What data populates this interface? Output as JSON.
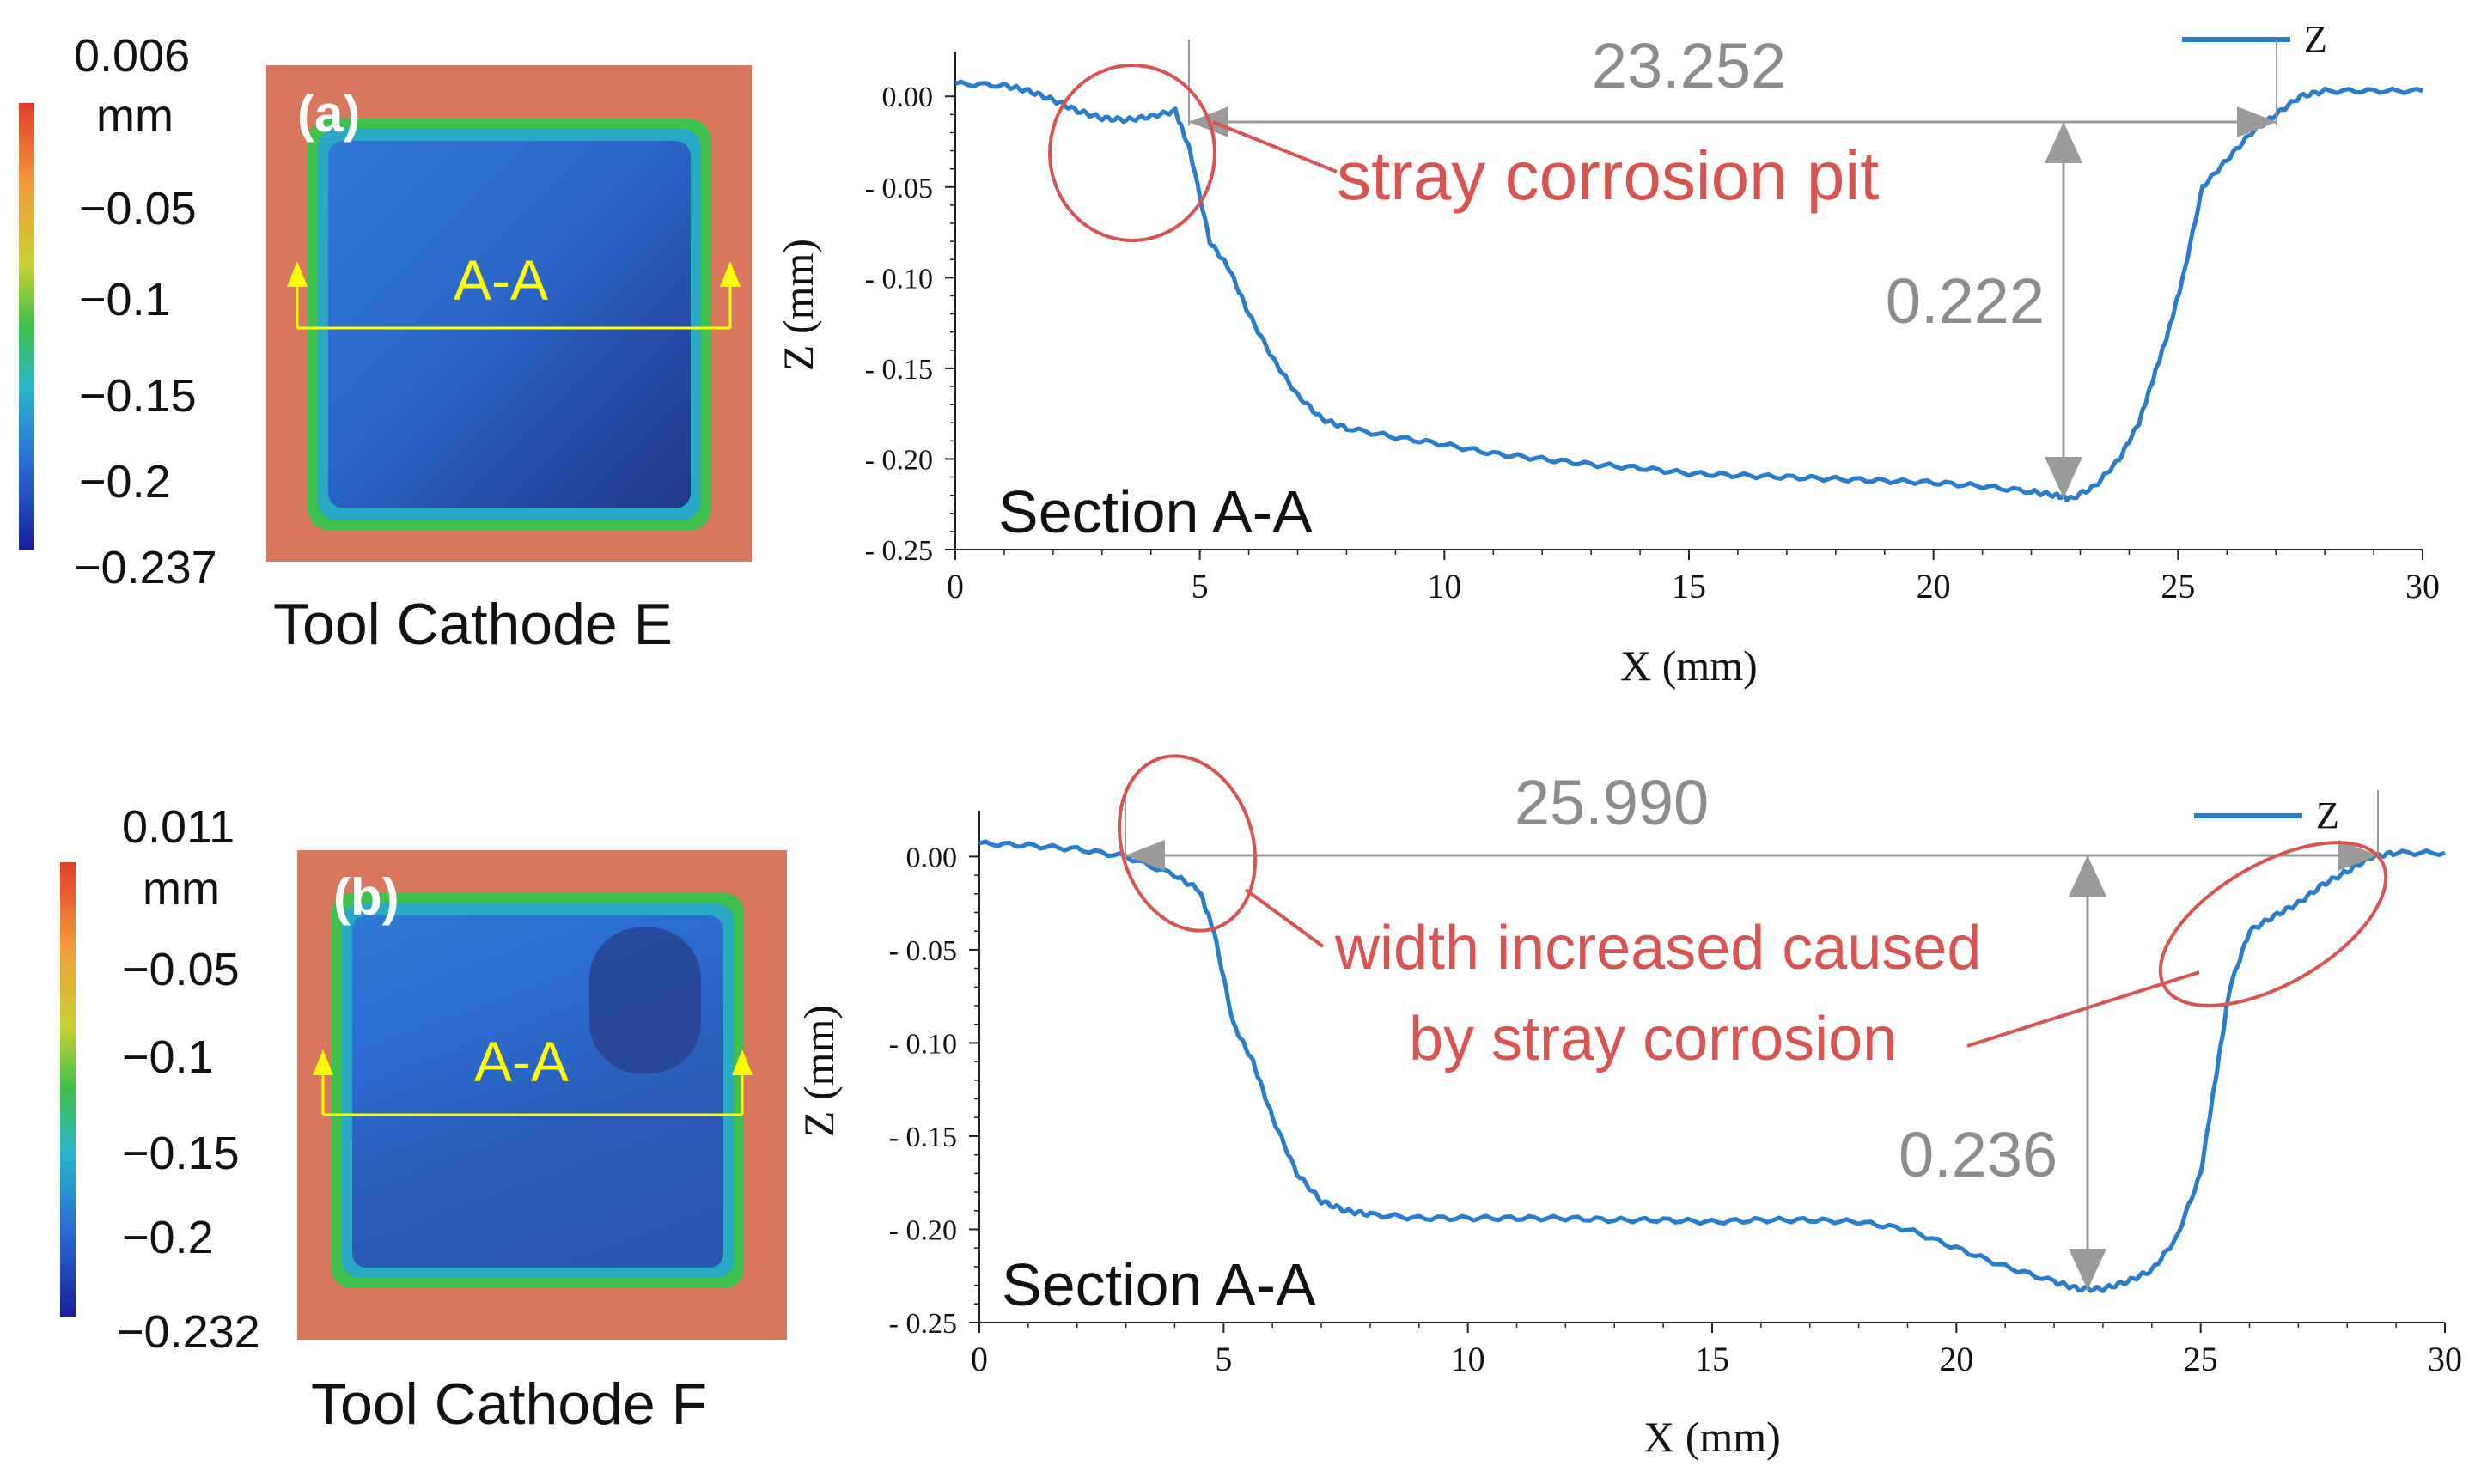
{
  "panels": [
    {
      "id": "a",
      "panel_label": "(a)",
      "caption": "Tool Cathode E",
      "section_marker": "A-A",
      "colorbar": {
        "max_label": "0.006",
        "unit": "mm",
        "tick_labels": [
          "−0.05",
          "−0.1",
          "−0.15",
          "−0.2"
        ],
        "min_label": "−0.237"
      },
      "annotations": {
        "width_value": "23.252",
        "depth_value": "0.222",
        "note": "stray corrosion pit",
        "section_label": "Section A-A"
      }
    },
    {
      "id": "b",
      "panel_label": "(b)",
      "caption": "Tool Cathode F",
      "section_marker": "A-A",
      "colorbar": {
        "max_label": "0.011",
        "unit": "mm",
        "tick_labels": [
          "−0.05",
          "−0.1",
          "−0.15",
          "−0.2"
        ],
        "min_label": "−0.232"
      },
      "annotations": {
        "width_value": "25.990",
        "depth_value": "0.236",
        "note_line1": "width increased caused",
        "note_line2": "by stray corrosion",
        "section_label": "Section A-A"
      }
    }
  ],
  "colors": {
    "profile": "#2a7ccc",
    "annotation": "#d9534f",
    "dimension": "#9a9a9a",
    "marker": "#ffff00"
  },
  "chart_data": [
    {
      "type": "line",
      "xlabel": "X (mm)",
      "ylabel": "Z (mm)",
      "xlim": [
        0,
        30
      ],
      "ylim": [
        -0.25,
        0.02
      ],
      "x_ticks": [
        0,
        5,
        10,
        15,
        20,
        25,
        30
      ],
      "x_tick_labels": [
        "0",
        "5",
        "10",
        "15",
        "20",
        "25",
        "30"
      ],
      "y_ticks": [
        0.0,
        -0.05,
        -0.1,
        -0.15,
        -0.2,
        -0.25
      ],
      "y_tick_labels": [
        "0.00",
        "- 0.05",
        "- 0.10",
        "- 0.15",
        "- 0.20",
        "- 0.25"
      ],
      "legend": "Z",
      "series": [
        {
          "name": "Z",
          "x": [
            0,
            1,
            1.5,
            2,
            2.5,
            3,
            3.5,
            4,
            4.5,
            4.8,
            5.2,
            5.6,
            6,
            6.5,
            7,
            7.5,
            8,
            9,
            10,
            11,
            12,
            13,
            14,
            15,
            16,
            17,
            18,
            19,
            20,
            21,
            22,
            22.5,
            22.8,
            23.3,
            23.8,
            24.2,
            24.5,
            24.8,
            25.1,
            25.5,
            26,
            26.5,
            27,
            27.5,
            28,
            29,
            30
          ],
          "values": [
            0.007,
            0.006,
            0.003,
            -0.002,
            -0.008,
            -0.012,
            -0.013,
            -0.011,
            -0.008,
            -0.03,
            -0.08,
            -0.095,
            -0.12,
            -0.145,
            -0.165,
            -0.178,
            -0.183,
            -0.188,
            -0.192,
            -0.197,
            -0.2,
            -0.203,
            -0.205,
            -0.208,
            -0.209,
            -0.21,
            -0.211,
            -0.212,
            -0.213,
            -0.215,
            -0.218,
            -0.22,
            -0.222,
            -0.215,
            -0.2,
            -0.18,
            -0.155,
            -0.13,
            -0.1,
            -0.05,
            -0.035,
            -0.02,
            -0.01,
            0.0,
            0.003,
            0.003,
            0.003
          ]
        }
      ]
    },
    {
      "type": "line",
      "xlabel": "X (mm)",
      "ylabel": "Z (mm)",
      "xlim": [
        0,
        30
      ],
      "ylim": [
        -0.25,
        0.02
      ],
      "x_ticks": [
        0,
        5,
        10,
        15,
        20,
        25,
        30
      ],
      "x_tick_labels": [
        "0",
        "5",
        "10",
        "15",
        "20",
        "25",
        "30"
      ],
      "y_ticks": [
        0.0,
        -0.05,
        -0.1,
        -0.15,
        -0.2,
        -0.25
      ],
      "y_tick_labels": [
        "0.00",
        "- 0.05",
        "- 0.10",
        "- 0.15",
        "- 0.20",
        "- 0.25"
      ],
      "legend": "Z",
      "series": [
        {
          "name": "Z",
          "x": [
            0,
            1,
            2,
            3,
            4,
            4.5,
            4.8,
            5.2,
            5.6,
            6,
            6.5,
            7,
            7.5,
            8,
            9,
            10,
            11,
            12,
            13,
            14,
            15,
            16,
            17,
            18,
            19,
            20,
            21,
            22,
            22.5,
            23,
            23.5,
            24,
            24.5,
            25,
            25.3,
            25.6,
            26,
            26.5,
            27,
            27.5,
            28,
            28.5,
            29,
            30
          ],
          "values": [
            0.007,
            0.006,
            0.004,
            0.0,
            -0.01,
            -0.018,
            -0.04,
            -0.09,
            -0.11,
            -0.14,
            -0.17,
            -0.185,
            -0.19,
            -0.192,
            -0.194,
            -0.194,
            -0.194,
            -0.194,
            -0.195,
            -0.195,
            -0.196,
            -0.195,
            -0.195,
            -0.196,
            -0.2,
            -0.21,
            -0.22,
            -0.228,
            -0.232,
            -0.232,
            -0.228,
            -0.222,
            -0.205,
            -0.17,
            -0.12,
            -0.07,
            -0.04,
            -0.032,
            -0.025,
            -0.015,
            -0.008,
            0.0,
            0.002,
            0.002
          ]
        }
      ]
    }
  ]
}
